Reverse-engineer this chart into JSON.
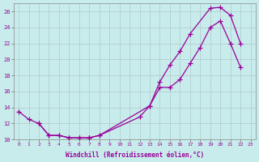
{
  "xlabel": "Windchill (Refroidissement éolien,°C)",
  "bg_color": "#c8ecec",
  "grid_color": "#b0c8cc",
  "line_color": "#990099",
  "xlim": [
    -0.5,
    23.5
  ],
  "ylim": [
    10,
    27
  ],
  "xticks": [
    0,
    1,
    2,
    3,
    4,
    5,
    6,
    7,
    8,
    9,
    10,
    11,
    12,
    13,
    14,
    15,
    16,
    17,
    18,
    19,
    20,
    21,
    22,
    23
  ],
  "yticks": [
    10,
    12,
    14,
    16,
    18,
    20,
    22,
    24,
    26
  ],
  "line1_x": [
    0,
    1,
    2,
    3,
    4,
    5,
    6,
    7,
    8,
    13,
    14,
    15,
    16,
    17,
    19,
    20,
    21,
    22
  ],
  "line1_y": [
    13.5,
    12.5,
    12.0,
    10.5,
    10.5,
    10.2,
    10.2,
    10.2,
    10.5,
    14.2,
    17.2,
    19.3,
    21.0,
    23.2,
    26.4,
    26.5,
    25.5,
    22.0
  ],
  "line2_x": [
    2,
    3,
    4,
    5,
    6,
    7,
    7,
    8,
    12,
    13,
    14,
    15,
    16,
    17,
    18,
    19,
    20,
    21,
    22
  ],
  "line2_y": [
    12.0,
    10.5,
    10.5,
    10.2,
    10.2,
    10.2,
    10.2,
    10.5,
    12.8,
    14.2,
    16.5,
    16.5,
    17.5,
    19.5,
    21.5,
    24.0,
    24.8,
    22.0,
    19.0
  ]
}
